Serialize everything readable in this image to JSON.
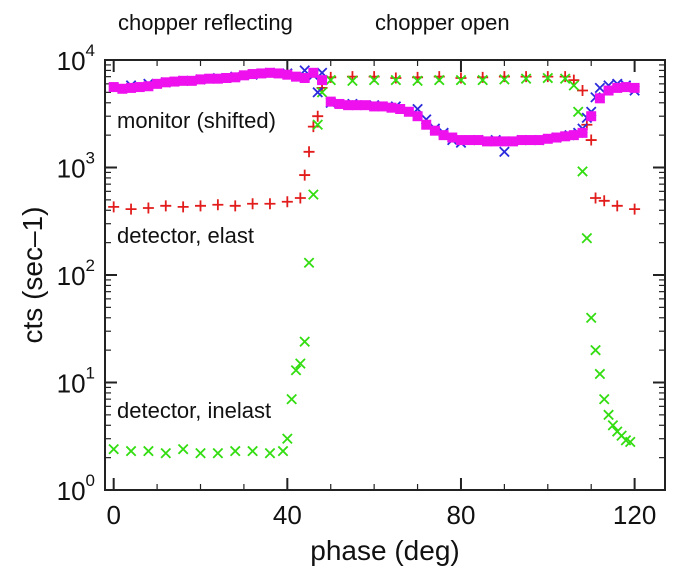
{
  "chart_data": {
    "type": "scatter",
    "title": "",
    "xlabel": "phase  (deg)",
    "ylabel": "cts  (sec–1)",
    "xlim": [
      -2,
      127
    ],
    "ylim": [
      1,
      10000
    ],
    "yscale": "log",
    "x_ticks": [
      0,
      40,
      80,
      120
    ],
    "y_ticks": [
      {
        "base": "10",
        "exp": "0",
        "value": 1
      },
      {
        "base": "10",
        "exp": "1",
        "value": 10
      },
      {
        "base": "10",
        "exp": "2",
        "value": 100
      },
      {
        "base": "10",
        "exp": "3",
        "value": 1000
      },
      {
        "base": "10",
        "exp": "4",
        "value": 10000
      }
    ],
    "annotations": {
      "chopper_reflecting": "chopper reflecting",
      "chopper_open": "chopper open",
      "monitor": "monitor (shifted)",
      "detector_elast": "detector, elast",
      "detector_inelast": "detector, inelast"
    },
    "grid": false,
    "series": [
      {
        "color": "#e21b1b",
        "marker": "plus",
        "x": [
          0,
          4,
          8,
          12,
          16,
          20,
          24,
          28,
          32,
          36,
          40,
          43,
          44,
          45,
          46,
          47,
          48,
          50,
          55,
          60,
          65,
          70,
          75,
          80,
          85,
          90,
          95,
          100,
          104,
          106,
          108,
          109,
          110,
          111,
          113,
          116,
          120
        ],
        "y": [
          430,
          410,
          420,
          440,
          430,
          440,
          450,
          440,
          460,
          460,
          480,
          520,
          850,
          1400,
          2400,
          3000,
          5500,
          6900,
          7000,
          7000,
          6800,
          6900,
          7000,
          6800,
          6900,
          7000,
          7000,
          7000,
          7000,
          6500,
          5200,
          2500,
          1800,
          520,
          490,
          440,
          410
        ]
      },
      {
        "color": "#33dd11",
        "marker": "x",
        "x": [
          0,
          4,
          8,
          12,
          16,
          20,
          24,
          28,
          32,
          36,
          39,
          40,
          41,
          42,
          43,
          44,
          45,
          46,
          47,
          48,
          50,
          55,
          60,
          65,
          70,
          75,
          80,
          85,
          90,
          95,
          100,
          104,
          106,
          107,
          108,
          109,
          110,
          111,
          112,
          113,
          114,
          115,
          116,
          117,
          118,
          119
        ],
        "y": [
          2.4,
          2.3,
          2.3,
          2.2,
          2.4,
          2.2,
          2.2,
          2.3,
          2.3,
          2.2,
          2.3,
          3.0,
          7.0,
          13,
          15,
          24,
          130,
          560,
          2500,
          5000,
          6500,
          6400,
          6500,
          6500,
          6400,
          6500,
          6500,
          6500,
          6600,
          6700,
          6800,
          6700,
          5800,
          3300,
          920,
          220,
          40,
          20,
          12,
          7,
          5,
          4,
          3.5,
          3.2,
          2.9,
          2.8
        ]
      },
      {
        "color": "#2b2bdd",
        "marker": "x",
        "x": [
          4,
          8,
          12,
          16,
          20,
          24,
          28,
          32,
          36,
          40,
          44,
          46,
          47,
          48,
          50,
          55,
          60,
          65,
          70,
          72,
          74,
          76,
          78,
          80,
          84,
          88,
          90,
          94,
          98,
          102,
          105,
          107,
          108,
          109,
          110,
          111,
          112,
          114,
          116,
          118,
          120
        ],
        "y": [
          5800,
          6000,
          6200,
          6400,
          6600,
          6800,
          7000,
          7300,
          7600,
          7500,
          8000,
          7200,
          5000,
          7600,
          4000,
          3900,
          3800,
          3700,
          3500,
          2800,
          2300,
          2100,
          1800,
          1700,
          1800,
          1800,
          1400,
          1800,
          1800,
          1900,
          2000,
          2100,
          2300,
          2900,
          3300,
          4500,
          5500,
          5800,
          6000,
          5800,
          5200
        ]
      },
      {
        "color": "#ee11ee",
        "marker": "square",
        "x": [
          0,
          2,
          4,
          6,
          8,
          10,
          12,
          14,
          16,
          18,
          20,
          22,
          24,
          26,
          28,
          30,
          32,
          34,
          36,
          38,
          40,
          42,
          44,
          46,
          48,
          50,
          52,
          54,
          56,
          58,
          60,
          62,
          64,
          66,
          68,
          70,
          72,
          74,
          76,
          78,
          80,
          82,
          84,
          86,
          88,
          90,
          92,
          94,
          96,
          98,
          100,
          102,
          104,
          106,
          108,
          110,
          112,
          114,
          116,
          118,
          120
        ],
        "y": [
          5600,
          5400,
          5500,
          5600,
          5700,
          6000,
          6200,
          6300,
          6400,
          6400,
          6600,
          6700,
          6700,
          6800,
          6900,
          7200,
          7400,
          7500,
          7600,
          7500,
          7300,
          7000,
          6800,
          7600,
          6500,
          4100,
          3900,
          3800,
          3800,
          3800,
          3700,
          3700,
          3600,
          3500,
          3300,
          3000,
          2500,
          2200,
          2000,
          1900,
          1800,
          1800,
          1800,
          1750,
          1750,
          1750,
          1750,
          1800,
          1800,
          1800,
          1850,
          1900,
          1950,
          2000,
          2100,
          3000,
          4400,
          5200,
          5500,
          5600,
          5500
        ]
      }
    ]
  }
}
